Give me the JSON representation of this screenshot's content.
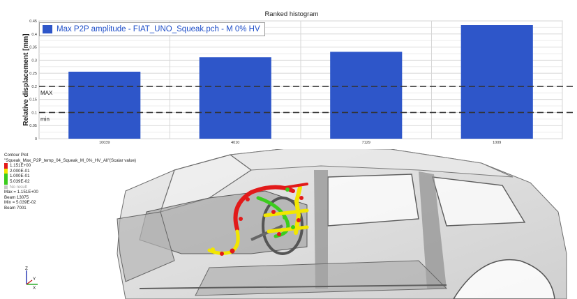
{
  "chart_data": {
    "type": "bar",
    "title": "Ranked histogram",
    "xlabel": "",
    "ylabel": "Relative displacement [mm]",
    "categories": [
      "10039",
      "4010",
      "7129",
      "1009"
    ],
    "series": [
      {
        "name": "Max P2P amplitude - FIAT_UNO_Squeak.pch - M 0% HV",
        "values": [
          0.256,
          0.311,
          0.332,
          0.434
        ]
      }
    ],
    "ylim": [
      0,
      0.45
    ],
    "yticks": [
      "0",
      "0.05",
      "0.1",
      "0.15",
      "0.2",
      "0.25",
      "0.3",
      "0.35",
      "0.4",
      "0.45"
    ],
    "reference_lines": [
      {
        "label": "MAX",
        "value": 0.2
      },
      {
        "label": "min",
        "value": 0.1
      }
    ],
    "grid": true,
    "legend_position": "top-left",
    "bar_color": "#2e56c9"
  },
  "contour_plot": {
    "title": "Contour Plot",
    "subtitle": "\"Squeak_Max_P2P_temp_04_Squeak_M_0%_HV_All\"(Scalar value)",
    "levels": [
      {
        "label": "1.151E+00",
        "color": "#e21a1a"
      },
      {
        "label": "2.000E-01",
        "color": "#f2e600"
      },
      {
        "label": "1.000E-01",
        "color": "#3ccc1e"
      },
      {
        "label": "5.039E-02",
        "color": "#3ccc1e"
      }
    ],
    "no_result_label": "No result",
    "no_result_color": "#c8c8c8",
    "max_text": "Max = 1.151E+00",
    "max_beam": "Beam 13075",
    "min_text": "Min = 5.039E-02",
    "min_beam": "Beam 7001"
  },
  "triad": {
    "z": "Z",
    "y": "Y",
    "x": "X"
  }
}
